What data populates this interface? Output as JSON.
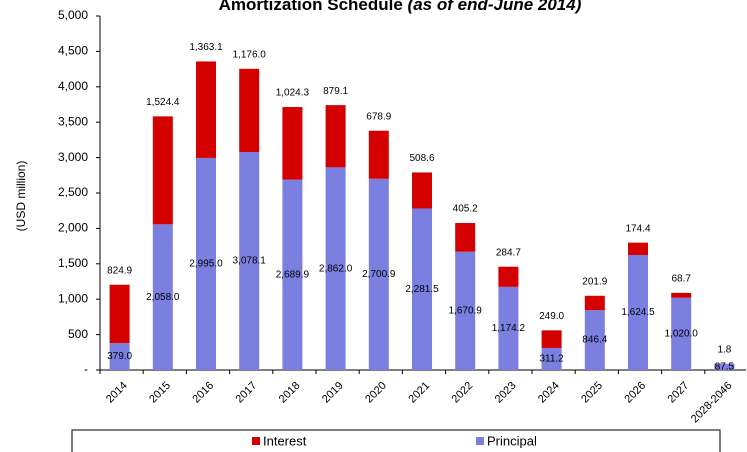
{
  "chart_data": {
    "type": "stacked_bar",
    "title": "Amortization Schedule",
    "subtitle": "(as of end-June 2014)",
    "y_label": "(USD million)",
    "categories": [
      "2014",
      "2015",
      "2016",
      "2017",
      "2018",
      "2019",
      "2020",
      "2021",
      "2022",
      "2023",
      "2024",
      "2025",
      "2026",
      "2027",
      "2028-2046"
    ],
    "series": [
      {
        "name": "Interest",
        "color": "#d40000",
        "values": [
          824.9,
          1524.4,
          1363.1,
          1176.0,
          1024.3,
          879.1,
          678.9,
          508.6,
          405.2,
          284.7,
          249.0,
          201.9,
          174.4,
          68.7,
          1.8
        ],
        "value_labels": [
          "824.9",
          "1,524.4",
          "1,363.1",
          "1,176.0",
          "1,024.3",
          "879.1",
          "678.9",
          "508.6",
          "405.2",
          "284.7",
          "249.0",
          "201.9",
          "174.4",
          "68.7",
          "1.8"
        ]
      },
      {
        "name": "Principal",
        "color": "#7b7fe0",
        "values": [
          379.0,
          2058.0,
          2995.0,
          3078.1,
          2689.9,
          2862.0,
          2700.9,
          2281.5,
          1670.9,
          1174.2,
          311.2,
          846.4,
          1624.5,
          1020.0,
          87.5
        ],
        "value_labels": [
          "379.0",
          "2,058.0",
          "2,995.0",
          "3,078.1",
          "2,689.9",
          "2,862.0",
          "2,700.9",
          "2,281.5",
          "1,670.9",
          "1,174.2",
          "311.2",
          "846.4",
          "1,624.5",
          "1,020.0",
          "87.5"
        ]
      }
    ],
    "ylim": [
      0,
      5000
    ],
    "yticks": [
      {
        "value": 0,
        "label": "-"
      },
      500,
      {
        "value": 1000,
        "label": "1,000"
      },
      {
        "value": 1500,
        "label": "1,500"
      },
      {
        "value": 2000,
        "label": "2,000"
      },
      {
        "value": 2500,
        "label": "2,500"
      },
      {
        "value": 3000,
        "label": "3,000"
      },
      {
        "value": 3500,
        "label": "3,500"
      },
      {
        "value": 4000,
        "label": "4,000"
      },
      {
        "value": 4500,
        "label": "4,500"
      },
      {
        "value": 5000,
        "label": "5,000"
      }
    ],
    "legend": "bottom"
  }
}
